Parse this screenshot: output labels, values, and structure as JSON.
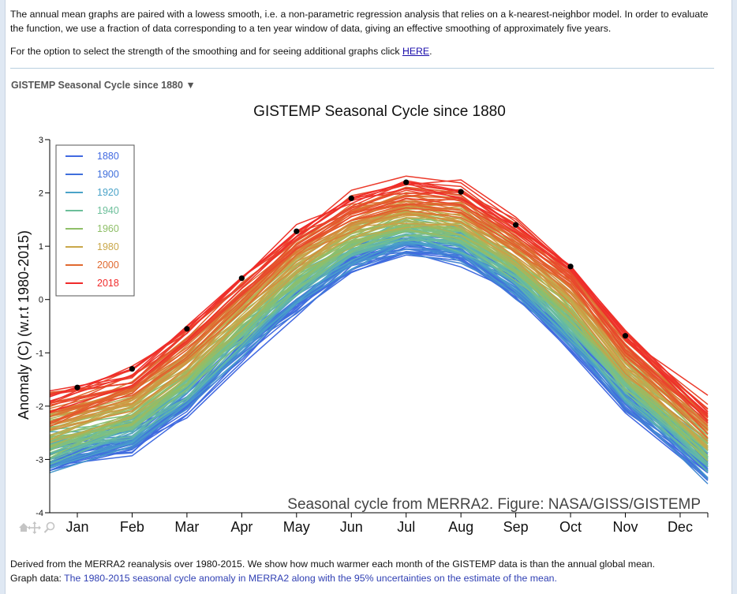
{
  "intro": {
    "paragraph1": "The annual mean graphs are paired with a lowess smooth, i.e. a non-parametric regression analysis that relies on a k-nearest-neighbor model. In order to evaluate the function, we use a fraction of data corresponding to a ten year window of data, giving an effective smoothing of approximately five years.",
    "paragraph2_prefix": "For the option to select the strength of the smoothing and for seeing additional graphs click ",
    "paragraph2_link": "HERE",
    "paragraph2_suffix": "."
  },
  "section": {
    "toggle_label": "GISTEMP Seasonal Cycle since 1880 ▼"
  },
  "toolbar": {
    "home_icon": "home-icon",
    "pan_icon": "pan-icon",
    "zoom_icon": "zoom-icon"
  },
  "caption": {
    "line1": "Derived from the MERRA2 reanalysis over 1980-2015. We show how much warmer each month of the GISTEMP data is than the annual global mean.",
    "line2_prefix": "Graph data: ",
    "line2_link": "The 1980-2015 seasonal cycle anomaly in MERRA2 along with the 95% uncertainties on the estimate of the mean."
  },
  "chart_data": {
    "type": "line",
    "title": "GISTEMP Seasonal Cycle since 1880",
    "annotation": "Seasonal cycle from MERRA2. Figure: NASA/GISS/GISTEMP",
    "xlabel": "",
    "ylabel": "Anomaly (C) (w.r.t 1980-2015)",
    "categories": [
      "Jan",
      "Feb",
      "Mar",
      "Apr",
      "May",
      "Jun",
      "Jul",
      "Aug",
      "Sep",
      "Oct",
      "Nov",
      "Dec"
    ],
    "ylim": [
      -4,
      3
    ],
    "yticks": [
      3,
      2,
      1,
      0,
      -1,
      -2,
      -3,
      -4
    ],
    "grid": false,
    "legend_position": "top-left",
    "legend": [
      {
        "label": "1880",
        "color": "#4169e1"
      },
      {
        "label": "1900",
        "color": "#3f6fdc"
      },
      {
        "label": "1920",
        "color": "#4aa3c8"
      },
      {
        "label": "1940",
        "color": "#6cbf9a"
      },
      {
        "label": "1960",
        "color": "#8fbf68"
      },
      {
        "label": "1980",
        "color": "#c9a74a"
      },
      {
        "label": "2000",
        "color": "#e0692f"
      },
      {
        "label": "2018",
        "color": "#f02a2a"
      }
    ],
    "year_range": [
      1880,
      2018
    ],
    "series_envelope": {
      "description": "One line per year 1880-2018, colored by year; approximate lower (1880-era) and upper (recent) envelopes",
      "early_1880s": [
        -2.95,
        -2.7,
        -1.95,
        -0.95,
        -0.05,
        0.7,
        1.0,
        0.85,
        0.2,
        -0.8,
        -1.9,
        -2.75
      ],
      "recent_2000s": [
        -1.7,
        -1.4,
        -0.6,
        0.35,
        1.25,
        1.85,
        2.15,
        2.05,
        1.4,
        0.6,
        -0.7,
        -1.6
      ]
    },
    "highlight_series": {
      "name": "2018",
      "marker": "black-dot",
      "values": [
        -1.65,
        -1.3,
        -0.55,
        0.4,
        1.28,
        1.9,
        2.2,
        2.02,
        1.4,
        0.62,
        -0.68,
        null
      ]
    }
  }
}
